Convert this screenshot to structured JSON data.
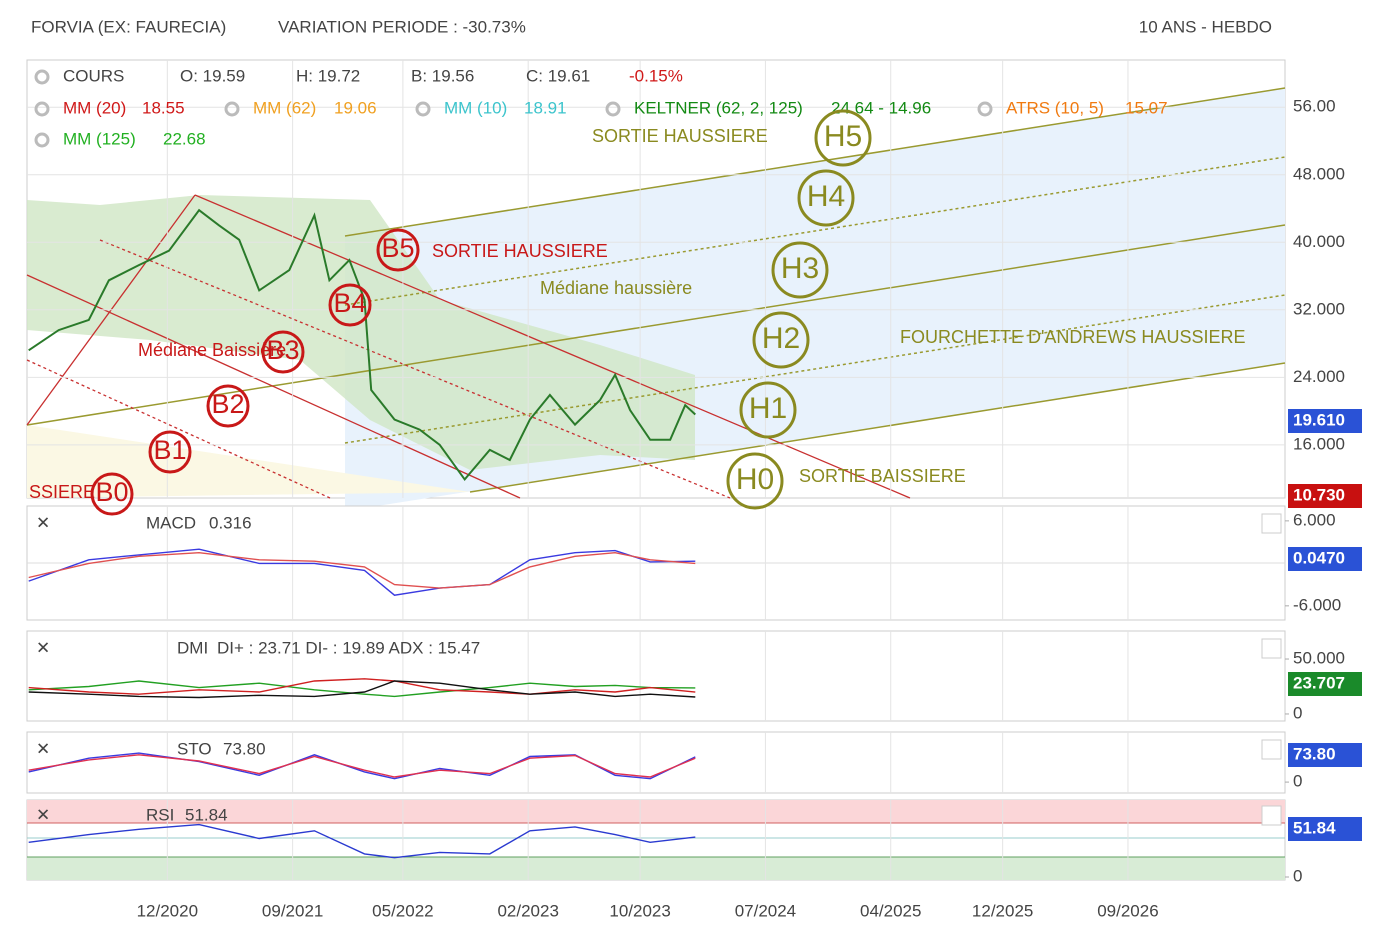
{
  "header": {
    "title": "FORVIA (EX: FAURECIA)",
    "variation": "VARIATION PERIODE : -30.73%",
    "period": "10 ANS - HEBDO"
  },
  "chart_data": [
    {
      "type": "line",
      "legend_title": "COURS",
      "ohlc": [
        "O: 19.59",
        "H: 19.72",
        "B: 19.56",
        "C: 19.61"
      ],
      "change": "-0.15%",
      "indicators": [
        {
          "name": "MM (20)",
          "value": "18.55",
          "color": "#d01818"
        },
        {
          "name": "MM (62)",
          "value": "19.06",
          "color": "#f0a020"
        },
        {
          "name": "MM (10)",
          "value": "18.91",
          "color": "#3cc4cc"
        },
        {
          "name": "KELTNER (62, 2, 125)",
          "value": "24.64 - 14.96",
          "color": "#138a13"
        },
        {
          "name": "ATRS (10, 5)",
          "value": "15.07",
          "color": "#f07a10"
        },
        {
          "name": "MM (125)",
          "value": "22.68",
          "color": "#22b022"
        }
      ],
      "x": [
        2020.09,
        2020.27,
        2020.45,
        2020.57,
        2020.75,
        2020.93,
        2021.11,
        2021.23,
        2021.35,
        2021.47,
        2021.65,
        2021.8,
        2021.89,
        2022.01,
        2022.1,
        2022.14,
        2022.28,
        2022.43,
        2022.55,
        2022.7,
        2022.85,
        2022.97,
        2023.09,
        2023.21,
        2023.36,
        2023.51,
        2023.6,
        2023.69,
        2023.81,
        2023.93,
        2024.02,
        2024.08
      ],
      "series": [
        {
          "name": "COURS",
          "color": "#2a7a2a",
          "values": [
            27.2,
            29.6,
            30.8,
            35.5,
            37.3,
            39,
            43.8,
            42,
            40.3,
            34.3,
            36.7,
            43.2,
            35.5,
            37.9,
            33.2,
            22.5,
            19,
            17.8,
            16,
            11.9,
            15.4,
            14.2,
            19,
            21.9,
            18.4,
            21.3,
            24.3,
            20.1,
            16.6,
            16.6,
            20.7,
            19.6
          ]
        }
      ],
      "xlim": [
        2020.08,
        2027.61
      ],
      "ylim": [
        9.7,
        61.6
      ],
      "xticks": [
        {
          "value": 2020.92,
          "label": "12/2020"
        },
        {
          "value": 2021.67,
          "label": "09/2021"
        },
        {
          "value": 2022.33,
          "label": "05/2022"
        },
        {
          "value": 2023.08,
          "label": "02/2023"
        },
        {
          "value": 2023.75,
          "label": "10/2023"
        },
        {
          "value": 2024.5,
          "label": "07/2024"
        },
        {
          "value": 2025.25,
          "label": "04/2025"
        },
        {
          "value": 2025.92,
          "label": "12/2025"
        },
        {
          "value": 2026.67,
          "label": "09/2026"
        }
      ],
      "yticks": [
        {
          "value": 56,
          "label": "56.00"
        },
        {
          "value": 48,
          "label": "48.000"
        },
        {
          "value": 40,
          "label": "40.000"
        },
        {
          "value": 32,
          "label": "32.000"
        },
        {
          "value": 24,
          "label": "24.000"
        },
        {
          "value": 16,
          "label": "16.000"
        }
      ],
      "last_labels": [
        {
          "text": "19.610",
          "color": "#2a52d6"
        },
        {
          "text": "10.730",
          "color": "#c81010"
        }
      ],
      "annotations": [
        {
          "text": "SORTIE HAUSSIERE",
          "color": "#c81818"
        },
        {
          "text": "SORTIE HAUSSIERE",
          "color": "#8a8a20"
        },
        {
          "text": "Médiane haussière",
          "color": "#8a8a20"
        },
        {
          "text": "Médiane Baissière",
          "color": "#c81818"
        },
        {
          "text": "FOURCHETTE D'ANDREWS HAUSSIERE",
          "color": "#8a8a20"
        },
        {
          "text": "SORTIE BAISSIERE",
          "color": "#8a8a20"
        },
        {
          "text": "SSIERE",
          "color": "#c81818"
        },
        {
          "text": "B5",
          "color": "#c81818"
        },
        {
          "text": "B4",
          "color": "#c81818"
        },
        {
          "text": "B3",
          "color": "#c81818"
        },
        {
          "text": "B2",
          "color": "#c81818"
        },
        {
          "text": "B1",
          "color": "#c81818"
        },
        {
          "text": "B0",
          "color": "#c81818"
        },
        {
          "text": "H5",
          "color": "#8a8a20"
        },
        {
          "text": "H4",
          "color": "#8a8a20"
        },
        {
          "text": "H3",
          "color": "#8a8a20"
        },
        {
          "text": "H2",
          "color": "#8a8a20"
        },
        {
          "text": "H1",
          "color": "#8a8a20"
        },
        {
          "text": "H0",
          "color": "#8a8a20"
        }
      ]
    },
    {
      "type": "line",
      "name": "MACD",
      "value": "0.316",
      "x": [
        2020.09,
        2020.45,
        2020.75,
        2021.11,
        2021.47,
        2021.8,
        2022.1,
        2022.28,
        2022.55,
        2022.85,
        2023.09,
        2023.36,
        2023.6,
        2023.81,
        2024.08
      ],
      "series": [
        {
          "color": "#3a3ae0",
          "values": [
            -2.5,
            0.5,
            1.2,
            2,
            0,
            0,
            -1,
            -4.5,
            -3.5,
            -3,
            0.5,
            1.5,
            1.8,
            0.2,
            0.3
          ]
        },
        {
          "color": "#e05050",
          "values": [
            -2,
            0,
            1,
            1.5,
            0.5,
            0.3,
            -0.5,
            -3,
            -3.5,
            -3,
            -0.5,
            1,
            1.5,
            0.5,
            0
          ]
        }
      ],
      "ylim": [
        -8,
        8.1
      ],
      "yticks": [
        {
          "value": 6,
          "label": "6.000"
        },
        {
          "value": -6,
          "label": "-6.000"
        }
      ],
      "last_label": {
        "text": "0.0470",
        "color": "#2a52d6"
      }
    },
    {
      "type": "line",
      "name": "DMI",
      "value": "DI+ : 23.71 DI- : 19.89 ADX : 15.47",
      "x": [
        2020.09,
        2020.45,
        2020.75,
        2021.11,
        2021.47,
        2021.8,
        2022.1,
        2022.28,
        2022.55,
        2022.85,
        2023.09,
        2023.36,
        2023.6,
        2023.81,
        2024.08
      ],
      "series": [
        {
          "color": "#22a022",
          "values": [
            22,
            25,
            30,
            24,
            28,
            22,
            18,
            16,
            20,
            24,
            28,
            25,
            26,
            24,
            23.71
          ]
        },
        {
          "color": "#d02020",
          "values": [
            24,
            20,
            18,
            22,
            20,
            30,
            32,
            30,
            22,
            20,
            18,
            22,
            20,
            24,
            19.89
          ]
        },
        {
          "color": "#111111",
          "values": [
            20,
            18,
            16,
            15,
            17,
            16,
            20,
            30,
            28,
            22,
            18,
            20,
            16,
            18,
            15.47
          ]
        }
      ],
      "ylim": [
        -6.4,
        75.5
      ],
      "yticks": [
        {
          "value": 50,
          "label": "50.000"
        },
        0
      ],
      "last_label": {
        "text": "23.707",
        "color": "#1a8a2a"
      }
    },
    {
      "type": "line",
      "name": "STO",
      "value": "73.80",
      "x": [
        2020.09,
        2020.45,
        2020.75,
        2021.11,
        2021.47,
        2021.8,
        2022.1,
        2022.28,
        2022.55,
        2022.85,
        2023.09,
        2023.36,
        2023.6,
        2023.81,
        2024.08
      ],
      "series": [
        {
          "color": "#3a3ae0",
          "values": [
            30,
            70,
            85,
            60,
            20,
            80,
            30,
            10,
            40,
            20,
            75,
            80,
            20,
            10,
            73.8
          ]
        },
        {
          "color": "#e03050",
          "values": [
            35,
            65,
            80,
            62,
            25,
            75,
            35,
            15,
            35,
            25,
            70,
            78,
            25,
            15,
            70
          ]
        }
      ],
      "ylim": [
        -32,
        147
      ],
      "yticks": [
        0
      ],
      "last_label": {
        "text": "73.80",
        "color": "#2a52d6"
      }
    },
    {
      "type": "line",
      "name": "RSI",
      "value": "51.84",
      "x": [
        2020.09,
        2020.45,
        2020.75,
        2021.11,
        2021.47,
        2021.8,
        2022.1,
        2022.28,
        2022.55,
        2022.85,
        2023.09,
        2023.36,
        2023.6,
        2023.81,
        2024.08
      ],
      "series": [
        {
          "color": "#2a3ad0",
          "values": [
            45,
            55,
            62,
            68,
            50,
            60,
            30,
            25,
            32,
            30,
            60,
            65,
            55,
            45,
            51.84
          ]
        }
      ],
      "ylim": [
        -3.9,
        100
      ],
      "yticks": [
        0
      ],
      "last_label": {
        "text": "51.84",
        "color": "#2a52d6"
      }
    }
  ]
}
